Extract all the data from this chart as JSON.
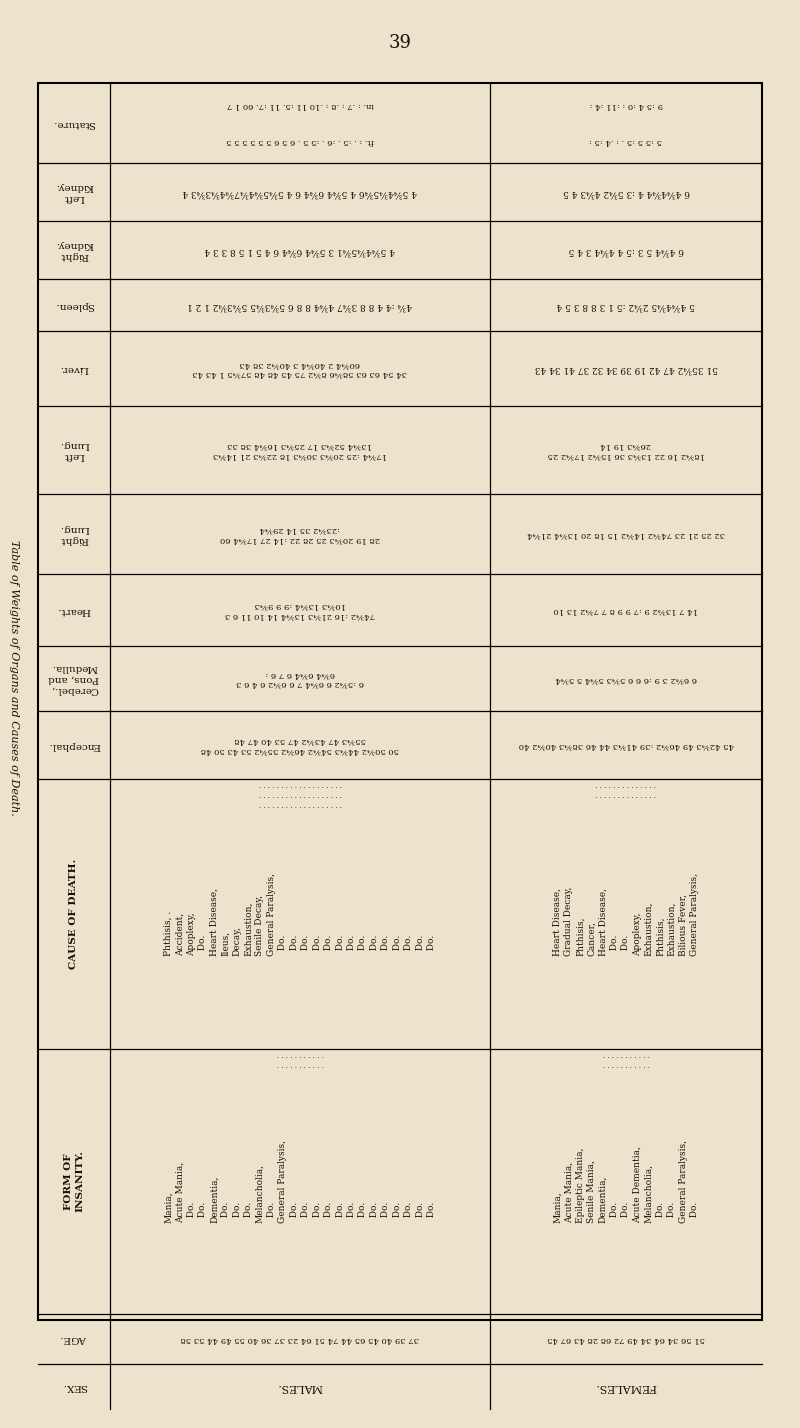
{
  "page_number": "39",
  "background_color": "#ede3cc",
  "text_color": "#1a1008",
  "sidebar_title": "Table of Weights of Organs and Causes of Death.",
  "row_headers_rotated": [
    "Stature.",
    "Left\nKidney.",
    "Right\nKidney.",
    "Spleen.",
    "Liver.",
    "Left\nLung.",
    "Right\nLung.",
    "Heart.",
    "Cerebel.,\nPons, and\nMedulla.",
    "Encephal.",
    "CAUSE OF DEATH.",
    "FORM OF\nINSANITY.",
    "AGE.",
    "SEX."
  ],
  "males_stature_in": "in. : . 7 : .8 : .10 11 :5. 11 :7. 6 0 1 7",
  "males_stature_ft": "ft. : . :5 . :6 . :5 5 . 6 5 6 5 5 5 5 5 5",
  "females_stature_in": "9 :5 4 :0 : :11 :4 :",
  "females_stature_ft": "5 :5 5 :5 : :4 :5 :",
  "males_left_kidney": "4 5¾4¾5¾6 4 5¾4 6¾4 6 4 5¾5¾4¾7¾4¾3¾3 4",
  "females_left_kidney": "6 4¾4¾4 4 :3 5¾2 4¾3 4 5",
  "males_right_kidney": "4 5¾4¾5¾1 3 5¾4 6¾4 6 4 5 1 5 8 3 3 4",
  "females_right_kidney": "6 4¾4 5 3 :5 4 4¾4 3 4 5",
  "males_spleen": "4¾ :4 4 8 8 3¾7 4¾4 8 8 6 5¾3¾5 5¾3¾2 1 2 1",
  "females_spleen": "5 4¾4¾5 2¾2 :5 1 3 8 8 3 5 4",
  "males_liver": "34 54 63 63 58¾6 8¾2 75 45 48 48 57¾5 1 43 43 60¾4 2 40¾4 3 40¾2 38 43",
  "females_liver": "51 35¾2 47 42 19 39 34 32 37 41 34 43",
  "males_left_lung": "17¾4 :25 20¾3 30¾3 18 22¾3 21 14¾3 13¾4 52¾3 17 25¾3 16¾4 38 33",
  "females_left_lung": "18¾2 16 22 13¾3 36 15¾2 17¾2 25 26¾3 19 14",
  "males_right_lung": "28 19 20¾3 25 28 22 :14 27 17¾4 60 :23¾2 35 14 29¾4",
  "females_right_lung": "32 25 21 23 74¾2 14¾2 15 18 20 13¾4 21¾4",
  "males_heart": "74¾2 :16 21¾3 13¾4 14 10 11 6 3 10¾3 13¾4 :9 9 9¾3",
  "females_heart": "14 7 13¾2 9 :7 9 9 8 7 7¾2 13 10",
  "males_cerebellum": "6 :5¾2 6 6¾4 7 6 6¾2 6 4 6 3 6¾4 6¾4 6 7 6 :",
  "females_cerebellum": "6 6¾2 3 9 :6 6 6 5¾3 5¾4 5 5¾4",
  "males_encephal": "50 50¾2 44¾3 54¾2 46¾2 55¾2 53 43 50 48 55¾3 47 43¾2 47 53 40 47 48",
  "females_encephal": "45 42¾3 49 46¾2 :39 41¾3 44 46 38¾3 40¾2 40",
  "males_cause": "Phthisis, .\nAccident,\nApoplexy,\n  Do.\nHeart Disease,\nIleus,\nDecay,\nExhaustion,\nSenile Decay,\nGeneral Paralysis,\n  Do.\n  Do.\n  Do.\n  Do.\n  Do.\n  Do.\n  Do.\n  Do.\n  Do.\n  Do.\n  Do.\n  Do.\n  Do.\n  Do.",
  "females_cause": "Heart Disease,\nGradual Decay,\nPhthisis,\nCancer,\nHeart Disease,\n  Do.\n  Do.\nApoplexy,\nExhaustion,\nPhthisis,\nExhaustion,\nBilious Fever,\nGeneral Paralysis,",
  "males_insanity": "Mania,\nAcute Mania,\n  Do.\n  Do.\nDementia,\n  Do.\n  Do.\n  Do.\nMelancholia,\n  Do.\nGeneral Paralysis,\n  Do.\n  Do.\n  Do.\n  Do.\n  Do.\n  Do.\n  Do.\n  Do.\n  Do.\n  Do.\n  Do.\n  Do.\n  Do.",
  "females_insanity": "Mania,\nAcute Mania,\nEpileptic Mania,\nSenile Mania,\nDementia,\n  Do.\n  Do.\nAcute Dementia,\nMelancholia,\n  Do.\n  Do.\nGeneral Paralysis,\n  Do.",
  "males_age": "37\n39\n40\n45\n65\n44\n74\n51\n64\n23\n37\n36\n40\n55\n49\n44\n53\n58",
  "females_age": "51\n56\n34\n64\n34\n49\n72\n68\n28\n43\n67\n45",
  "males_sex": "MALES.",
  "females_sex": "FEMALES."
}
